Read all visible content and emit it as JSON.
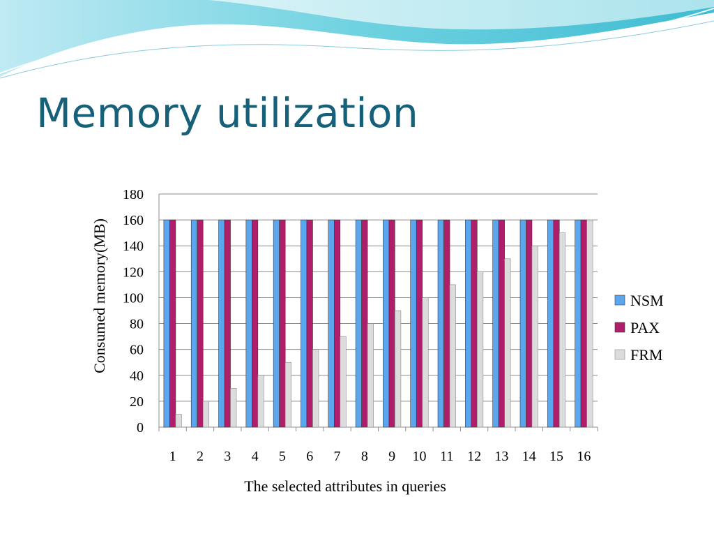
{
  "slide": {
    "title": "Memory utilization"
  },
  "colors": {
    "title": "#17607a",
    "wave_dark": "#5ec8d8",
    "wave_light": "#c8eef4"
  },
  "chart_data": {
    "type": "bar",
    "title": "",
    "xlabel": "The selected attributes in queries",
    "ylabel": "Consumed memory(MB)",
    "ylim": [
      0,
      180
    ],
    "ytick_step": 20,
    "grid": true,
    "legend_position": "right",
    "categories": [
      "1",
      "2",
      "3",
      "4",
      "5",
      "6",
      "7",
      "8",
      "9",
      "10",
      "11",
      "12",
      "13",
      "14",
      "15",
      "16"
    ],
    "series": [
      {
        "name": "NSM",
        "color": "#5aa7f0",
        "values": [
          160,
          160,
          160,
          160,
          160,
          160,
          160,
          160,
          160,
          160,
          160,
          160,
          160,
          160,
          160,
          160
        ]
      },
      {
        "name": "PAX",
        "color": "#b01d6a",
        "values": [
          160,
          160,
          160,
          160,
          160,
          160,
          160,
          160,
          160,
          160,
          160,
          160,
          160,
          160,
          160,
          160
        ]
      },
      {
        "name": "FRM",
        "color": "#dcdcdc",
        "values": [
          10,
          20,
          30,
          40,
          50,
          60,
          70,
          80,
          90,
          100,
          110,
          120,
          130,
          140,
          150,
          160
        ]
      }
    ]
  }
}
